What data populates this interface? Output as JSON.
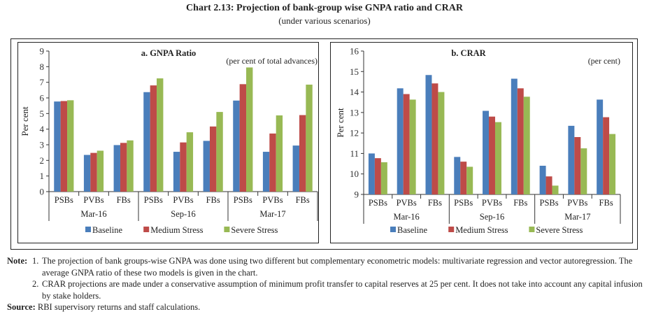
{
  "title": "Chart 2.13: Projection of bank-group wise GNPA ratio and CRAR",
  "subtitle": "(under various scenarios)",
  "colors": {
    "Baseline": "#4a7ebb",
    "Medium Stress": "#be4b48",
    "Severe Stress": "#98b954"
  },
  "chart_data": [
    {
      "type": "bar",
      "title": "a. GNPA Ratio",
      "unit_note": "(per cent of total advances)",
      "ylabel": "Per cent",
      "xlabel": "",
      "ylim": [
        0,
        9
      ],
      "yticks": [
        0,
        1,
        2,
        3,
        4,
        5,
        6,
        7,
        8,
        9
      ],
      "grid": false,
      "legend": "bottom",
      "groups": [
        "Mar-16",
        "Sep-16",
        "Mar-17"
      ],
      "categories": [
        "PSBs",
        "PVBs",
        "FBs",
        "PSBs",
        "PVBs",
        "FBs",
        "PSBs",
        "PVBs",
        "FBs"
      ],
      "series": [
        {
          "name": "Baseline",
          "values": [
            5.77,
            2.35,
            2.98,
            6.37,
            2.55,
            3.25,
            5.83,
            2.55,
            2.95
          ]
        },
        {
          "name": "Medium Stress",
          "values": [
            5.8,
            2.48,
            3.12,
            6.8,
            3.15,
            4.17,
            6.88,
            3.72,
            4.9
          ]
        },
        {
          "name": "Severe Stress",
          "values": [
            5.85,
            2.62,
            3.28,
            7.25,
            3.8,
            5.1,
            7.95,
            4.88,
            6.85
          ]
        }
      ]
    },
    {
      "type": "bar",
      "title": "b. CRAR",
      "unit_note": "(per cent)",
      "ylabel": "Per cent",
      "xlabel": "",
      "ylim": [
        9,
        16
      ],
      "yticks": [
        9,
        10,
        11,
        12,
        13,
        14,
        15,
        16
      ],
      "grid": false,
      "legend": "bottom",
      "groups": [
        "Mar-16",
        "Sep-16",
        "Mar-17"
      ],
      "categories": [
        "PSBs",
        "PVBs",
        "FBs",
        "PSBs",
        "PVBs",
        "FBs",
        "PSBs",
        "PVBs",
        "FBs"
      ],
      "series": [
        {
          "name": "Baseline",
          "values": [
            11.0,
            14.18,
            14.83,
            10.83,
            13.08,
            14.65,
            10.4,
            12.35,
            13.63
          ]
        },
        {
          "name": "Medium Stress",
          "values": [
            10.77,
            13.9,
            14.42,
            10.6,
            12.8,
            14.18,
            9.88,
            11.8,
            12.77
          ]
        },
        {
          "name": "Severe Stress",
          "values": [
            10.57,
            13.63,
            14.0,
            10.35,
            12.53,
            13.77,
            9.43,
            11.25,
            11.95
          ]
        }
      ]
    }
  ],
  "notes": {
    "label": "Note:",
    "items": [
      {
        "num": "1.",
        "text": "The projection of bank groups-wise GNPA was done using two different but complementary econometric models: multivariate regression and vector autoregression. The average GNPA ratio of these two models is given in the chart."
      },
      {
        "num": "2.",
        "text": "CRAR projections are made under a conservative assumption of minimum profit transfer to capital reserves at 25 per cent. It does not take into account any capital infusion by stake holders."
      }
    ]
  },
  "source": {
    "label": "Source:",
    "text": "RBI supervisory returns and staff calculations."
  }
}
